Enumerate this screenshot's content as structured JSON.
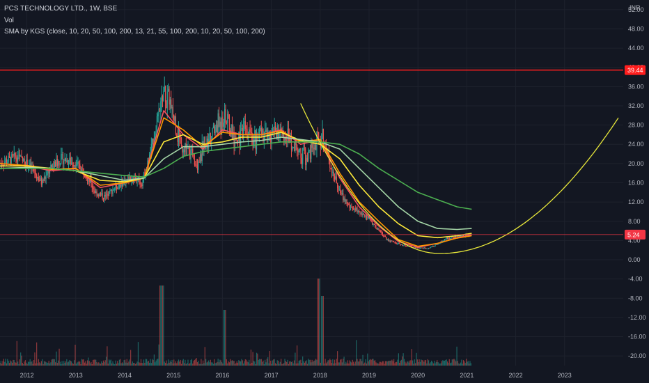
{
  "header": {
    "symbol_line": "PCS TECHNOLOGY LTD., 1W, BSE",
    "vol_label": "Vol",
    "sma_line": "SMA by KGS (close, 10, 20, 50, 100, 200, 13, 21, 55, 100, 200, 10, 20, 50, 100, 200)"
  },
  "currency": "INR",
  "colors": {
    "background": "#131722",
    "grid": "#1e222d",
    "candle_up": "#26a69a",
    "candle_down": "#ef5350",
    "resistance": "#ff1e1e",
    "price_line": "#f23645",
    "cup_curve": "#e8e83a",
    "sma_fast": "#f7525f",
    "sma_orange": "#ff9800",
    "sma_yellow": "#ffeb3b",
    "sma_lightgreen": "#a5d6a7",
    "sma_green": "#4caf50"
  },
  "chart_data": {
    "type": "candlestick",
    "y_axis": {
      "range": [
        -22,
        54
      ],
      "ticks": [
        "52.00",
        "48.00",
        "44.00",
        "40.00",
        "36.00",
        "32.00",
        "28.00",
        "24.00",
        "20.00",
        "16.00",
        "12.00",
        "8.00",
        "4.00",
        "0.00",
        "-4.00",
        "-8.00",
        "-12.00",
        "-16.00",
        "-20.00"
      ]
    },
    "x_axis": {
      "range": [
        2011.45,
        2024.2
      ],
      "ticks": [
        "2012",
        "2013",
        "2014",
        "2015",
        "2016",
        "2017",
        "2018",
        "2019",
        "2020",
        "2021",
        "2022",
        "2023"
      ]
    },
    "markers": [
      {
        "label": "39.44",
        "value": 39.44
      },
      {
        "label": "5.24",
        "value": 5.24
      }
    ],
    "price_keypoints": [
      [
        2011.45,
        20
      ],
      [
        2011.8,
        21.5
      ],
      [
        2012.1,
        19
      ],
      [
        2012.3,
        16
      ],
      [
        2012.5,
        19
      ],
      [
        2012.7,
        21
      ],
      [
        2013.0,
        20
      ],
      [
        2013.2,
        18
      ],
      [
        2013.4,
        14
      ],
      [
        2013.6,
        13
      ],
      [
        2013.8,
        15
      ],
      [
        2014.0,
        16.5
      ],
      [
        2014.2,
        17
      ],
      [
        2014.35,
        16
      ],
      [
        2014.5,
        21
      ],
      [
        2014.65,
        28
      ],
      [
        2014.8,
        34
      ],
      [
        2014.95,
        32
      ],
      [
        2015.1,
        26
      ],
      [
        2015.3,
        22
      ],
      [
        2015.5,
        21
      ],
      [
        2015.7,
        25
      ],
      [
        2015.9,
        28
      ],
      [
        2016.05,
        30
      ],
      [
        2016.25,
        25
      ],
      [
        2016.5,
        27
      ],
      [
        2016.7,
        25
      ],
      [
        2016.9,
        26
      ],
      [
        2017.1,
        27
      ],
      [
        2017.3,
        26
      ],
      [
        2017.5,
        24
      ],
      [
        2017.7,
        21
      ],
      [
        2017.9,
        24
      ],
      [
        2018.05,
        26
      ],
      [
        2018.2,
        20
      ],
      [
        2018.4,
        14
      ],
      [
        2018.6,
        11
      ],
      [
        2018.8,
        10
      ],
      [
        2019.0,
        8.5
      ],
      [
        2019.2,
        6
      ],
      [
        2019.4,
        4
      ],
      [
        2019.6,
        3.3
      ],
      [
        2019.8,
        2.8
      ],
      [
        2020.0,
        2.5
      ],
      [
        2020.2,
        2.4
      ],
      [
        2020.4,
        3.2
      ],
      [
        2020.6,
        4.5
      ],
      [
        2020.8,
        4.8
      ],
      [
        2021.0,
        5.0
      ],
      [
        2021.1,
        5.24
      ]
    ],
    "sma_curves": [
      {
        "key": "sma_fast",
        "points": [
          [
            2011.45,
            20
          ],
          [
            2012.0,
            19.5
          ],
          [
            2012.5,
            18.5
          ],
          [
            2013.0,
            19
          ],
          [
            2013.5,
            15
          ],
          [
            2014.0,
            16
          ],
          [
            2014.4,
            17
          ],
          [
            2014.8,
            31
          ],
          [
            2015.2,
            26
          ],
          [
            2015.6,
            23
          ],
          [
            2016.0,
            27
          ],
          [
            2016.4,
            26
          ],
          [
            2016.8,
            26
          ],
          [
            2017.2,
            27
          ],
          [
            2017.6,
            24
          ],
          [
            2018.0,
            25
          ],
          [
            2018.4,
            17
          ],
          [
            2018.8,
            11
          ],
          [
            2019.2,
            7
          ],
          [
            2019.6,
            3.8
          ],
          [
            2020.0,
            2.6
          ],
          [
            2020.4,
            3.4
          ],
          [
            2020.8,
            4.6
          ],
          [
            2021.1,
            5.2
          ]
        ]
      },
      {
        "key": "sma_orange",
        "points": [
          [
            2011.45,
            20
          ],
          [
            2012.0,
            19.6
          ],
          [
            2012.5,
            18.8
          ],
          [
            2013.0,
            19
          ],
          [
            2013.5,
            15.5
          ],
          [
            2014.0,
            16
          ],
          [
            2014.4,
            17
          ],
          [
            2014.8,
            29.5
          ],
          [
            2015.2,
            27
          ],
          [
            2015.6,
            23.5
          ],
          [
            2016.0,
            26.5
          ],
          [
            2016.4,
            26
          ],
          [
            2016.8,
            26
          ],
          [
            2017.2,
            26.8
          ],
          [
            2017.6,
            24.5
          ],
          [
            2018.0,
            25
          ],
          [
            2018.4,
            18
          ],
          [
            2018.8,
            12
          ],
          [
            2019.2,
            8
          ],
          [
            2019.6,
            4.2
          ],
          [
            2020.0,
            2.8
          ],
          [
            2020.4,
            3.4
          ],
          [
            2020.8,
            4.5
          ],
          [
            2021.1,
            5.0
          ]
        ]
      },
      {
        "key": "sma_yellow",
        "points": [
          [
            2011.45,
            19.5
          ],
          [
            2012.0,
            19.5
          ],
          [
            2012.5,
            19
          ],
          [
            2013.0,
            18.5
          ],
          [
            2013.5,
            16.5
          ],
          [
            2014.0,
            16.2
          ],
          [
            2014.4,
            17
          ],
          [
            2014.8,
            24.5
          ],
          [
            2015.2,
            26
          ],
          [
            2015.6,
            24
          ],
          [
            2016.0,
            24.5
          ],
          [
            2016.4,
            25.5
          ],
          [
            2016.8,
            25.5
          ],
          [
            2017.2,
            26.5
          ],
          [
            2017.6,
            24.8
          ],
          [
            2018.0,
            24
          ],
          [
            2018.4,
            21
          ],
          [
            2018.8,
            15.5
          ],
          [
            2019.2,
            11
          ],
          [
            2019.6,
            7.5
          ],
          [
            2020.0,
            5.0
          ],
          [
            2020.4,
            4.6
          ],
          [
            2020.8,
            5.0
          ],
          [
            2021.1,
            5.5
          ]
        ]
      },
      {
        "key": "sma_lightgreen",
        "points": [
          [
            2011.45,
            19
          ],
          [
            2012.0,
            19.2
          ],
          [
            2012.5,
            19
          ],
          [
            2013.0,
            18.5
          ],
          [
            2013.5,
            17.5
          ],
          [
            2014.0,
            16.5
          ],
          [
            2014.4,
            17
          ],
          [
            2014.8,
            21
          ],
          [
            2015.2,
            23.5
          ],
          [
            2015.6,
            23.5
          ],
          [
            2016.0,
            24
          ],
          [
            2016.4,
            24.5
          ],
          [
            2016.8,
            24.8
          ],
          [
            2017.2,
            25.5
          ],
          [
            2017.6,
            25
          ],
          [
            2018.0,
            24.5
          ],
          [
            2018.4,
            23
          ],
          [
            2018.8,
            19
          ],
          [
            2019.2,
            15
          ],
          [
            2019.6,
            11
          ],
          [
            2020.0,
            8
          ],
          [
            2020.4,
            6.5
          ],
          [
            2020.8,
            6.3
          ],
          [
            2021.1,
            6.5
          ]
        ]
      },
      {
        "key": "sma_green",
        "points": [
          [
            2011.45,
            19
          ],
          [
            2012.0,
            19
          ],
          [
            2012.5,
            19
          ],
          [
            2013.0,
            18.5
          ],
          [
            2013.5,
            18
          ],
          [
            2014.0,
            17.5
          ],
          [
            2014.4,
            17.2
          ],
          [
            2014.8,
            19
          ],
          [
            2015.2,
            21.5
          ],
          [
            2015.6,
            22.5
          ],
          [
            2016.0,
            23
          ],
          [
            2016.4,
            23.5
          ],
          [
            2016.8,
            24
          ],
          [
            2017.2,
            24.5
          ],
          [
            2017.6,
            24.5
          ],
          [
            2018.0,
            24.5
          ],
          [
            2018.4,
            24
          ],
          [
            2018.8,
            22
          ],
          [
            2019.2,
            19
          ],
          [
            2019.6,
            16.5
          ],
          [
            2020.0,
            14
          ],
          [
            2020.4,
            12.5
          ],
          [
            2020.8,
            11
          ],
          [
            2021.1,
            10.5
          ]
        ]
      }
    ],
    "cup": {
      "left": [
        2017.6,
        32.5
      ],
      "bottom": [
        2020.45,
        1.3
      ],
      "right": [
        2024.1,
        29.5
      ]
    },
    "resistance": 39.44,
    "current_price": 5.24
  }
}
